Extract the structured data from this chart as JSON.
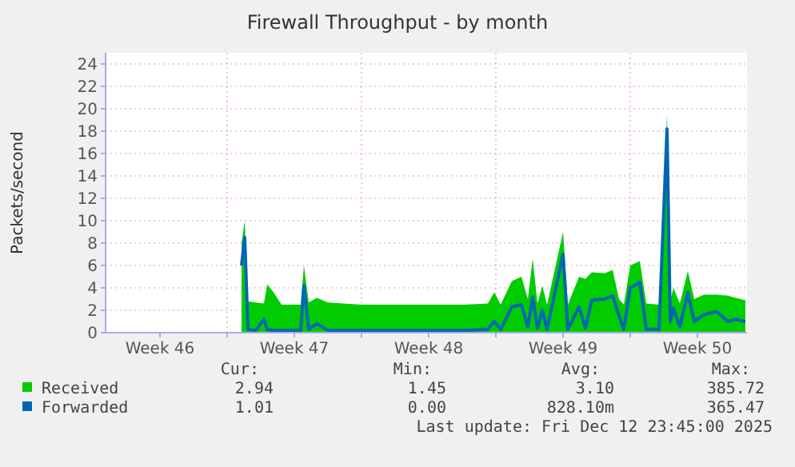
{
  "chart_data": {
    "type": "area",
    "title": "Firewall Throughput - by month",
    "ylabel": "Packets/second",
    "x": [
      "2025-11-17T18:00",
      "2025-11-17T22:00",
      "2025-11-18T02:00",
      "2025-11-18T12:00",
      "2025-11-18T22:00",
      "2025-11-19T02:00",
      "2025-11-19T10:00",
      "2025-11-19T20:00",
      "2025-11-20T20:00",
      "2025-11-21T00:00",
      "2025-11-21T06:00",
      "2025-11-21T16:00",
      "2025-11-22T06:00",
      "2025-11-24T00:00",
      "2025-11-26T20:00",
      "2025-11-29T08:00",
      "2025-11-30T14:00",
      "2025-11-30T22:00",
      "2025-12-01T06:00",
      "2025-12-01T20:00",
      "2025-12-02T08:00",
      "2025-12-02T16:00",
      "2025-12-02T22:00",
      "2025-12-03T04:00",
      "2025-12-03T10:00",
      "2025-12-03T16:00",
      "2025-12-04T12:00",
      "2025-12-04T18:00",
      "2025-12-05T08:00",
      "2025-12-05T16:00",
      "2025-12-06T00:00",
      "2025-12-06T16:00",
      "2025-12-07T02:00",
      "2025-12-07T10:00",
      "2025-12-07T16:00",
      "2025-12-08T00:00",
      "2025-12-08T12:00",
      "2025-12-08T20:00",
      "2025-12-09T12:00",
      "2025-12-09T22:00",
      "2025-12-10T02:00",
      "2025-12-10T06:00",
      "2025-12-10T14:00",
      "2025-12-11T00:00",
      "2025-12-11T08:00",
      "2025-12-11T20:00",
      "2025-12-12T12:00",
      "2025-12-13T02:00",
      "2025-12-13T12:00",
      "2025-12-14T00:00"
    ],
    "series": [
      {
        "name": "Received",
        "color": "#00cc00",
        "values": [
          8.0,
          10.0,
          2.8,
          2.7,
          2.6,
          4.3,
          3.6,
          2.5,
          2.5,
          6.0,
          2.7,
          3.1,
          2.7,
          2.5,
          2.5,
          2.5,
          2.6,
          3.6,
          2.5,
          4.6,
          5.0,
          3.0,
          6.6,
          2.6,
          4.2,
          2.5,
          9.0,
          2.5,
          5.0,
          4.8,
          5.4,
          5.3,
          5.6,
          3.0,
          2.5,
          6.0,
          6.4,
          2.6,
          2.5,
          19.5,
          2.8,
          4.0,
          2.6,
          5.5,
          3.0,
          3.4,
          3.4,
          3.3,
          3.1,
          2.9
        ]
      },
      {
        "name": "Forwarded",
        "type": "line",
        "color": "#0066b3",
        "values": [
          6.0,
          8.5,
          0.3,
          0.2,
          1.2,
          0.3,
          0.2,
          0.2,
          0.2,
          4.2,
          0.3,
          0.8,
          0.2,
          0.2,
          0.2,
          0.2,
          0.3,
          1.0,
          0.3,
          2.3,
          2.5,
          0.5,
          3.2,
          0.4,
          2.0,
          0.3,
          7.0,
          0.3,
          2.3,
          0.4,
          2.9,
          3.0,
          3.3,
          1.5,
          0.3,
          4.0,
          4.5,
          0.3,
          0.3,
          18.2,
          1.0,
          2.2,
          0.5,
          3.6,
          1.0,
          1.6,
          1.9,
          1.0,
          1.2,
          1.0
        ]
      }
    ],
    "xlim": [
      "2025-11-10T16:00",
      "2025-12-14T02:00"
    ],
    "xticks": [
      {
        "value": "2025-11-13T12:00",
        "label": "Week 46"
      },
      {
        "value": "2025-11-17T00:00",
        "label": null
      },
      {
        "value": "2025-11-20T12:00",
        "label": "Week 47"
      },
      {
        "value": "2025-11-24T00:00",
        "label": null
      },
      {
        "value": "2025-11-27T12:00",
        "label": "Week 48"
      },
      {
        "value": "2025-12-01T00:00",
        "label": null
      },
      {
        "value": "2025-12-04T12:00",
        "label": "Week 49"
      },
      {
        "value": "2025-12-08T00:00",
        "label": null
      },
      {
        "value": "2025-12-11T12:00",
        "label": "Week 50"
      }
    ],
    "ylim": [
      0,
      25
    ],
    "yticks": [
      0,
      2,
      4,
      6,
      8,
      10,
      12,
      14,
      16,
      18,
      20,
      22,
      24
    ],
    "grid": true,
    "legend": "bottom",
    "line_style": "solid",
    "annotations": [
      "Cur:",
      "Min:",
      "Avg:",
      "Max:",
      "2.94",
      "1.45",
      "3.10",
      "385.72",
      "1.01",
      "0.00",
      "828.10m",
      "365.47",
      "Last update: Fri Dec 12 23:45:00 2025"
    ]
  }
}
